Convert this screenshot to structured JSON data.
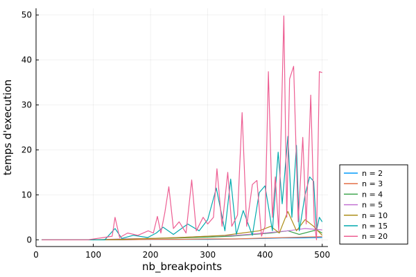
{
  "chart_data": {
    "type": "line",
    "title": "",
    "xlabel": "nb_breakpoints",
    "ylabel": "temps d'execution",
    "xlim": [
      0,
      510
    ],
    "ylim": [
      -1.5,
      51.5
    ],
    "xticks": [
      0,
      100,
      200,
      300,
      400,
      500
    ],
    "yticks": [
      0,
      10,
      20,
      30,
      40,
      50
    ],
    "grid": true,
    "legend_position": "outside-right-bottom",
    "series": [
      {
        "name": "n = 2",
        "color": "#009AFA",
        "x": [
          10,
          100,
          150,
          200,
          250,
          300,
          350,
          400,
          430,
          460,
          500
        ],
        "y": [
          0,
          0,
          0,
          0.1,
          0.1,
          0.1,
          0.2,
          0.3,
          0.4,
          0.4,
          0.5
        ]
      },
      {
        "name": "n = 3",
        "color": "#E36F47",
        "x": [
          10,
          100,
          150,
          200,
          250,
          300,
          350,
          400,
          440,
          470,
          500
        ],
        "y": [
          0,
          0,
          0,
          0.1,
          0.1,
          0.2,
          0.2,
          0.4,
          0.5,
          0.6,
          0.7
        ]
      },
      {
        "name": "n = 4",
        "color": "#3EA44E",
        "x": [
          10,
          100,
          150,
          200,
          250,
          300,
          340,
          380,
          410,
          440,
          460,
          490,
          500
        ],
        "y": [
          0,
          0,
          0.1,
          0.3,
          0.4,
          0.6,
          0.8,
          1.2,
          1.5,
          2,
          1.2,
          2.2,
          1.5
        ]
      },
      {
        "name": "n = 5",
        "color": "#C271D2",
        "x": [
          10,
          100,
          150,
          200,
          250,
          300,
          350,
          400,
          440,
          470,
          500
        ],
        "y": [
          0,
          0,
          0.2,
          0.3,
          0.5,
          0.8,
          1,
          1.5,
          2,
          2.5,
          2.2
        ]
      },
      {
        "name": "n = 10",
        "color": "#AC8E18",
        "x": [
          10,
          100,
          150,
          200,
          250,
          300,
          330,
          360,
          390,
          410,
          425,
          440,
          455,
          470,
          485,
          500
        ],
        "y": [
          0,
          0,
          0.1,
          0.3,
          0.5,
          0.8,
          1,
          1.5,
          2,
          3,
          1.5,
          6.3,
          2,
          4.5,
          3,
          1
        ]
      },
      {
        "name": "n = 15",
        "color": "#00A9AD",
        "x": [
          10,
          120,
          138,
          150,
          170,
          195,
          210,
          222,
          240,
          265,
          285,
          300,
          315,
          330,
          340,
          350,
          362,
          378,
          390,
          400,
          413,
          423,
          430,
          440,
          447,
          455,
          460,
          470,
          478,
          485,
          490,
          495,
          500
        ],
        "y": [
          0,
          0,
          2.5,
          0.3,
          1,
          0.5,
          1.5,
          2.8,
          1.2,
          3.5,
          2,
          4.5,
          11.5,
          2,
          13.5,
          1.2,
          6.5,
          1,
          10.5,
          12,
          2,
          19.5,
          8,
          23,
          5,
          21,
          2,
          10,
          14,
          13,
          2,
          5,
          4
        ]
      },
      {
        "name": "n = 20",
        "color": "#ED5D92",
        "x": [
          10,
          90,
          118,
          133,
          138,
          146,
          160,
          178,
          196,
          205,
          212,
          218,
          225,
          232,
          240,
          250,
          262,
          272,
          280,
          292,
          300,
          310,
          316,
          325,
          335,
          342,
          352,
          360,
          368,
          378,
          386,
          394,
          400,
          406,
          413,
          418,
          424,
          433,
          438,
          443,
          450,
          458,
          466,
          472,
          480,
          486,
          490,
          495,
          500
        ],
        "y": [
          0,
          0,
          0.5,
          0.8,
          5,
          0.5,
          1.5,
          1,
          2,
          1.5,
          5.2,
          1.5,
          6,
          11.8,
          2.5,
          4,
          1.5,
          13.3,
          2,
          5,
          3.5,
          5,
          15.8,
          3,
          15,
          3,
          5.5,
          28.3,
          3,
          12.3,
          13.2,
          0.8,
          3,
          37.4,
          5,
          14,
          2,
          49.8,
          5,
          35.8,
          38.6,
          4,
          22.8,
          3.5,
          32.2,
          4,
          0,
          37.4,
          37.2
        ]
      }
    ]
  }
}
